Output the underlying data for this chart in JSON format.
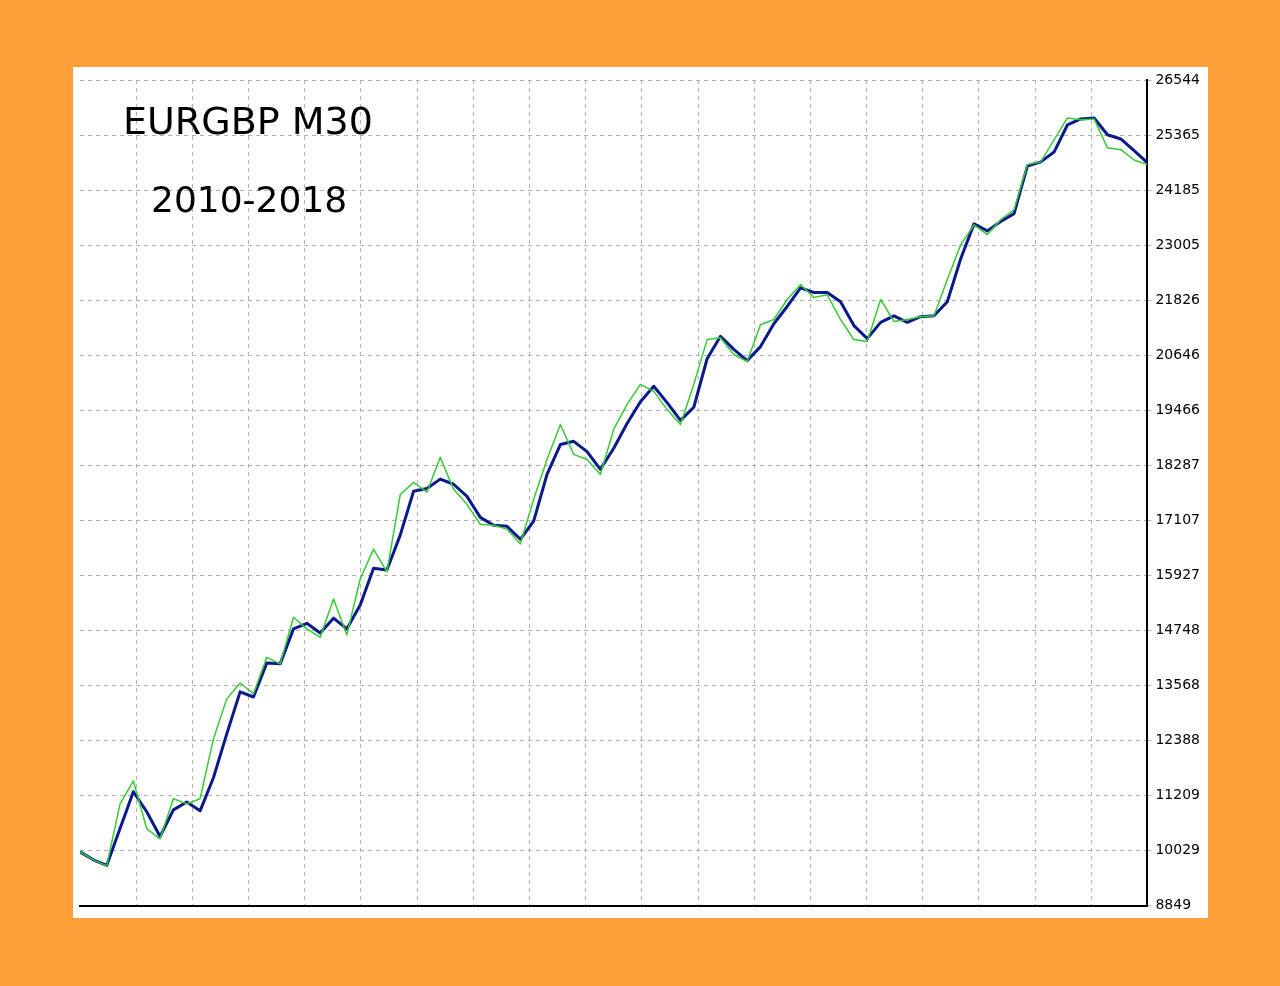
{
  "chart_data": {
    "type": "line",
    "title": "EURGBP M30",
    "subtitle": "2010-2018",
    "categories": [
      null,
      null,
      null,
      null,
      null,
      null,
      null,
      null,
      null,
      null,
      null,
      null,
      null,
      null,
      null,
      null,
      null,
      null,
      null,
      null,
      null,
      null,
      null,
      null,
      null,
      null,
      null,
      null,
      null,
      null,
      null,
      null,
      null,
      null,
      null,
      null,
      null,
      null,
      null,
      null,
      null,
      null,
      null,
      null,
      null,
      null,
      null,
      null,
      null,
      null,
      null,
      null,
      null,
      null,
      null,
      null,
      null,
      null,
      null,
      null,
      null,
      null,
      null,
      null,
      null,
      null,
      null,
      null,
      null,
      null,
      null,
      null,
      null,
      null,
      null,
      null,
      null,
      null,
      null,
      null,
      null
    ],
    "series": [
      {
        "color": "#33cc33",
        "values": [
          10000,
          9830,
          9700,
          11030,
          11520,
          10500,
          10280,
          11140,
          11030,
          11140,
          12420,
          13280,
          13620,
          13390,
          14170,
          14030,
          15030,
          14780,
          14600,
          15420,
          14650,
          15850,
          16490,
          16000,
          17660,
          17920,
          17710,
          18460,
          17770,
          17450,
          17020,
          17000,
          16920,
          16600,
          17560,
          18410,
          19160,
          18520,
          18410,
          18090,
          19060,
          19590,
          20020,
          19870,
          19480,
          19160,
          20020,
          20980,
          21020,
          20660,
          20510,
          21300,
          21410,
          21840,
          22160,
          21880,
          21940,
          21410,
          20980,
          20940,
          21840,
          21370,
          21410,
          21470,
          21490,
          22270,
          23010,
          23440,
          23230,
          23550,
          23760,
          24730,
          24790,
          25260,
          25730,
          25690,
          25710,
          25090,
          25050,
          24830,
          24730
        ]
      },
      {
        "color": "#0a1a8c",
        "values": [
          10000,
          9830,
          9710,
          10500,
          11290,
          10860,
          10330,
          10900,
          11070,
          10880,
          11590,
          12530,
          13430,
          13320,
          14050,
          14030,
          14780,
          14900,
          14690,
          15010,
          14780,
          15290,
          16080,
          16040,
          16790,
          17730,
          17790,
          17990,
          17880,
          17620,
          17170,
          17000,
          16980,
          16700,
          17090,
          18090,
          18730,
          18800,
          18580,
          18200,
          18650,
          19180,
          19650,
          19980,
          19630,
          19250,
          19530,
          20570,
          21050,
          20770,
          20530,
          20830,
          21320,
          21690,
          22090,
          21990,
          21990,
          21790,
          21280,
          21000,
          21350,
          21490,
          21350,
          21470,
          21490,
          21790,
          22710,
          23460,
          23310,
          23510,
          23680,
          24700,
          24790,
          25000,
          25580,
          25710,
          25730,
          25370,
          25280,
          25030,
          24770
        ]
      }
    ],
    "ylim": [
      8849,
      26544
    ],
    "yticks": [
      8849,
      10029,
      11209,
      12388,
      13568,
      14748,
      15927,
      17107,
      18287,
      19466,
      20646,
      21826,
      23005,
      24185,
      25365,
      26544
    ],
    "grid": true,
    "legend": false,
    "marker": "none",
    "line_style": "solid"
  }
}
